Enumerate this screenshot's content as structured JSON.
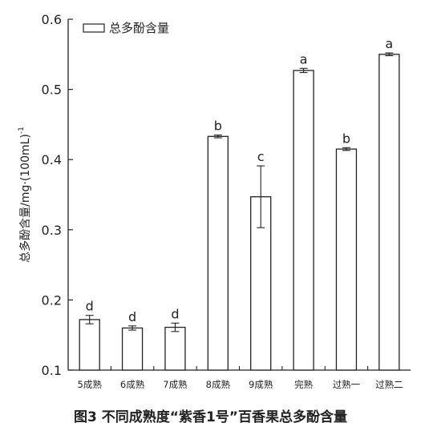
{
  "caption": "图3   不同成熟度“紫香1号”百香果总多酚含量",
  "chart_data": {
    "type": "bar",
    "title": "",
    "xlabel": "",
    "ylabel": "总多酚含量/mg·(100mL)",
    "ylabel_superscript": "-1",
    "ylim": [
      0.1,
      0.6
    ],
    "yticks": [
      0.1,
      0.2,
      0.3,
      0.4,
      0.5,
      0.6
    ],
    "ytick_labels": [
      "0.1",
      "0.2",
      "0.3",
      "0.4",
      "0.5",
      "0.6"
    ],
    "grid": false,
    "legend_position": "top-left",
    "categories": [
      "5成熟",
      "6成熟",
      "7成熟",
      "8成熟",
      "9成熟",
      "完熟",
      "过熟一",
      "过熟二"
    ],
    "series": [
      {
        "name": "总多酚含量",
        "values": [
          0.172,
          0.16,
          0.161,
          0.433,
          0.347,
          0.527,
          0.415,
          0.55
        ],
        "errors": [
          0.006,
          0.003,
          0.006,
          0.002,
          0.044,
          0.003,
          0.002,
          0.002
        ],
        "significance": [
          "d",
          "d",
          "d",
          "b",
          "c",
          "a",
          "b",
          "a"
        ]
      }
    ],
    "colors": {
      "bar_fill": "#ffffff",
      "bar_stroke": "#222222",
      "axis": "#222222"
    }
  }
}
